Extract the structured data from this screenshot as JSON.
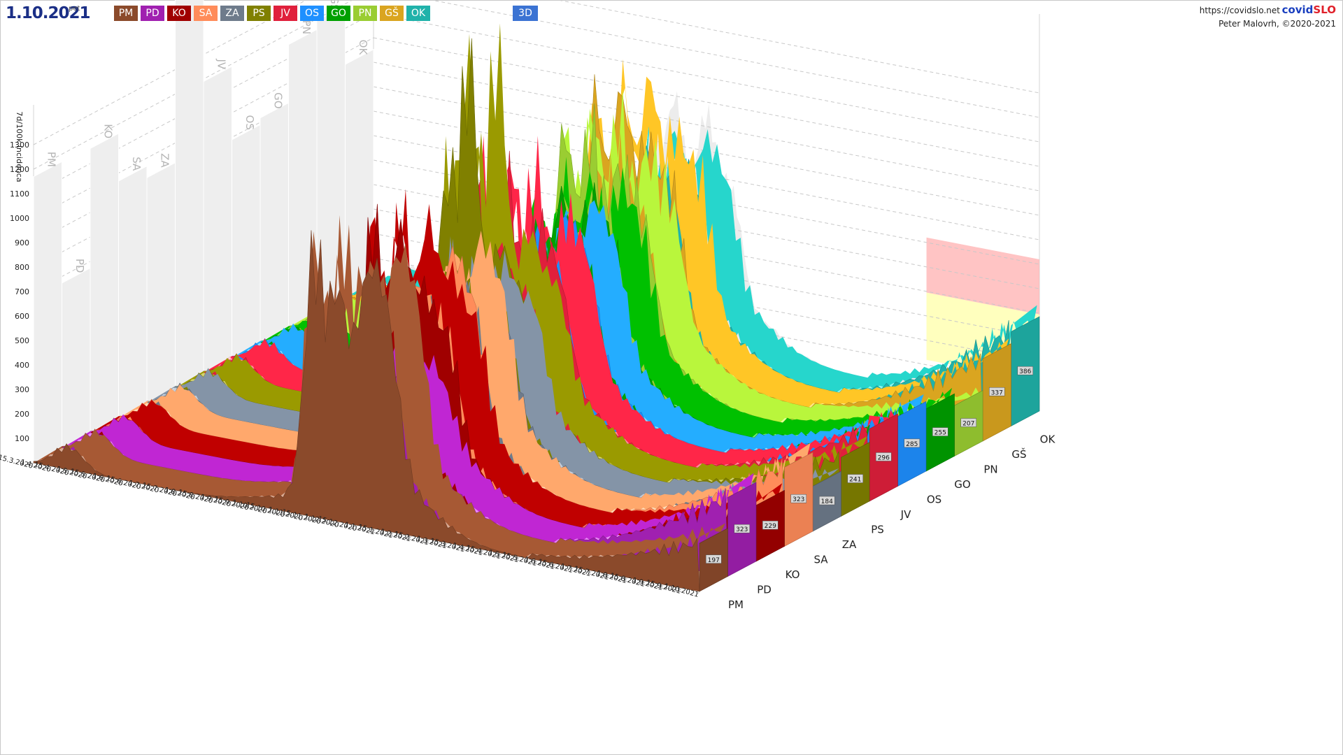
{
  "header": {
    "date": "1.10.2021",
    "weekday": "pet",
    "view_button": "3D",
    "url": "https://covidslo.net",
    "brand_a": "covid",
    "brand_b": "SLO",
    "copyright": "Peter Malovrh, ©2020-2021"
  },
  "chart_data": {
    "type": "area",
    "projection": "3d",
    "ylabel": "7d/100k incidenca",
    "yticks": [
      100,
      200,
      300,
      400,
      500,
      600,
      700,
      800,
      900,
      1000,
      1100,
      1200,
      1300
    ],
    "xticks": [
      "15.3.2020",
      "1.4.2020",
      "15.4.2020",
      "1.5.2020",
      "15.5.2020",
      "1.6.2020",
      "15.6.2020",
      "1.7.2020",
      "15.7.2020",
      "1.8.2020",
      "15.8.2020",
      "1.9.2020",
      "15.9.2020",
      "1.10.2020",
      "15.10.2020",
      "1.11.2020",
      "15.11.2020",
      "1.12.2020",
      "15.12.2020",
      "1.1.2021",
      "15.1.2021",
      "1.2.2021",
      "15.2.2021",
      "1.3.2021",
      "15.3.2021",
      "1.4.2021",
      "15.4.2021",
      "1.5.2021",
      "15.5.2021",
      "1.6.2021",
      "15.6.2021",
      "1.7.2021",
      "15.7.2021",
      "1.8.2021",
      "15.8.2021",
      "1.9.2021",
      "15.9.2021",
      "1.10.2021"
    ],
    "series": [
      {
        "name": "PM",
        "color": "#8b4a2b",
        "latest": 197,
        "peaks": [
          [
            238,
            920
          ],
          [
            258,
            700
          ],
          [
            282,
            640
          ],
          [
            300,
            560
          ]
        ]
      },
      {
        "name": "PD",
        "color": "#a020b0",
        "latest": 323,
        "peaks": [
          [
            232,
            400
          ],
          [
            260,
            420
          ],
          [
            286,
            250
          ],
          [
            302,
            140
          ]
        ]
      },
      {
        "name": "KO",
        "color": "#a00000",
        "latest": 229,
        "peaks": [
          [
            240,
            940
          ],
          [
            262,
            760
          ],
          [
            282,
            540
          ],
          [
            304,
            380
          ]
        ]
      },
      {
        "name": "SA",
        "color": "#ff8c5a",
        "latest": 323,
        "peaks": [
          [
            238,
            650
          ],
          [
            258,
            560
          ],
          [
            282,
            600
          ],
          [
            302,
            420
          ]
        ]
      },
      {
        "name": "ZA",
        "color": "#6e7b8b",
        "latest": 184,
        "peaks": [
          [
            236,
            620
          ],
          [
            258,
            560
          ],
          [
            280,
            480
          ],
          [
            304,
            360
          ]
        ]
      },
      {
        "name": "PS",
        "color": "#808000",
        "latest": 241,
        "peaks": [
          [
            230,
            900
          ],
          [
            250,
            1320
          ],
          [
            276,
            560
          ],
          [
            300,
            360
          ]
        ]
      },
      {
        "name": "JV",
        "color": "#e0203c",
        "latest": 296,
        "peaks": [
          [
            236,
            900
          ],
          [
            258,
            760
          ],
          [
            282,
            520
          ],
          [
            302,
            380
          ]
        ]
      },
      {
        "name": "OS",
        "color": "#1e90ff",
        "latest": 285,
        "peaks": [
          [
            234,
            620
          ],
          [
            258,
            560
          ],
          [
            282,
            520
          ],
          [
            302,
            360
          ]
        ]
      },
      {
        "name": "GO",
        "color": "#00a000",
        "latest": 255,
        "peaks": [
          [
            234,
            700
          ],
          [
            256,
            620
          ],
          [
            280,
            520
          ],
          [
            300,
            360
          ]
        ]
      },
      {
        "name": "PN",
        "color": "#9acd32",
        "latest": 207,
        "peaks": [
          [
            234,
            900
          ],
          [
            256,
            800
          ],
          [
            280,
            600
          ],
          [
            302,
            420
          ]
        ]
      },
      {
        "name": "GŠ",
        "color": "#daa520",
        "latest": 337,
        "peaks": [
          [
            236,
            960
          ],
          [
            258,
            880
          ],
          [
            280,
            620
          ],
          [
            302,
            460
          ]
        ]
      },
      {
        "name": "OK",
        "color": "#20b2aa",
        "latest": 386,
        "peaks": [
          [
            234,
            700
          ],
          [
            256,
            640
          ],
          [
            280,
            520
          ],
          [
            300,
            380
          ]
        ]
      }
    ]
  }
}
